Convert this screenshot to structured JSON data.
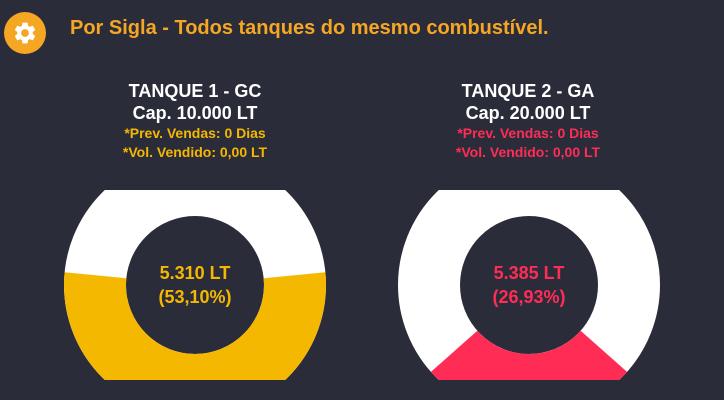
{
  "header": {
    "title": "Por Sigla - Todos tanques do mesmo combustível.",
    "icon": "gear-icon",
    "icon_color": "#f5a623"
  },
  "tanks": [
    {
      "name": "TANQUE 1 - GC",
      "capacity": "Cap. 10.000 LT",
      "prev_vendas": "*Prev. Vendas: 0 Dias",
      "vol_vendido": "*Vol. Vendido: 0,00 LT",
      "volume": "5.310 LT",
      "percent_label": "(53,10%)",
      "fill_fraction": 0.531,
      "color": "#f5b800"
    },
    {
      "name": "TANQUE 2 - GA",
      "capacity": "Cap. 20.000 LT",
      "prev_vendas": "*Prev. Vendas: 0 Dias",
      "vol_vendido": "*Vol. Vendido: 0,00 LT",
      "volume": "5.385 LT",
      "percent_label": "(26,93%)",
      "fill_fraction": 0.2693,
      "color": "#ff2d55"
    }
  ],
  "colors": {
    "background": "#2b2c3a",
    "empty": "#ffffff"
  }
}
